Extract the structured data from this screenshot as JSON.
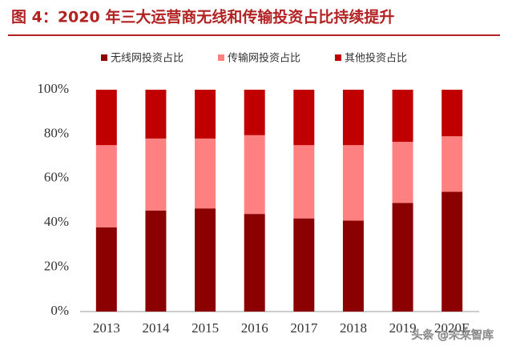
{
  "chart_data": {
    "type": "stacked_bar",
    "title": "图 4：2020 年三大运营商无线和传输投资占比持续提升",
    "categories": [
      "2013",
      "2014",
      "2015",
      "2016",
      "2017",
      "2018",
      "2019",
      "2020E"
    ],
    "series": [
      {
        "name": "无线网投资占比",
        "color": "#8b0000",
        "values": [
          38,
          45.5,
          46.5,
          44,
          42,
          41,
          49,
          54
        ]
      },
      {
        "name": "传输网投资占比",
        "color": "#ff8080",
        "values": [
          37,
          32.5,
          31.5,
          35.5,
          33,
          34,
          27.5,
          25
        ]
      },
      {
        "name": "其他投资占比",
        "color": "#c00000",
        "values": [
          25,
          22,
          22,
          20.5,
          25,
          25,
          23.5,
          21
        ]
      }
    ],
    "ylim": [
      0,
      100
    ],
    "yticks": [
      {
        "value": 0,
        "label": "0%"
      },
      {
        "value": 20,
        "label": "20%"
      },
      {
        "value": 40,
        "label": "40%"
      },
      {
        "value": 60,
        "label": "60%"
      },
      {
        "value": 80,
        "label": "80%"
      },
      {
        "value": 100,
        "label": "100%"
      }
    ],
    "grid": false,
    "annotation": "头条 @未来智库"
  }
}
